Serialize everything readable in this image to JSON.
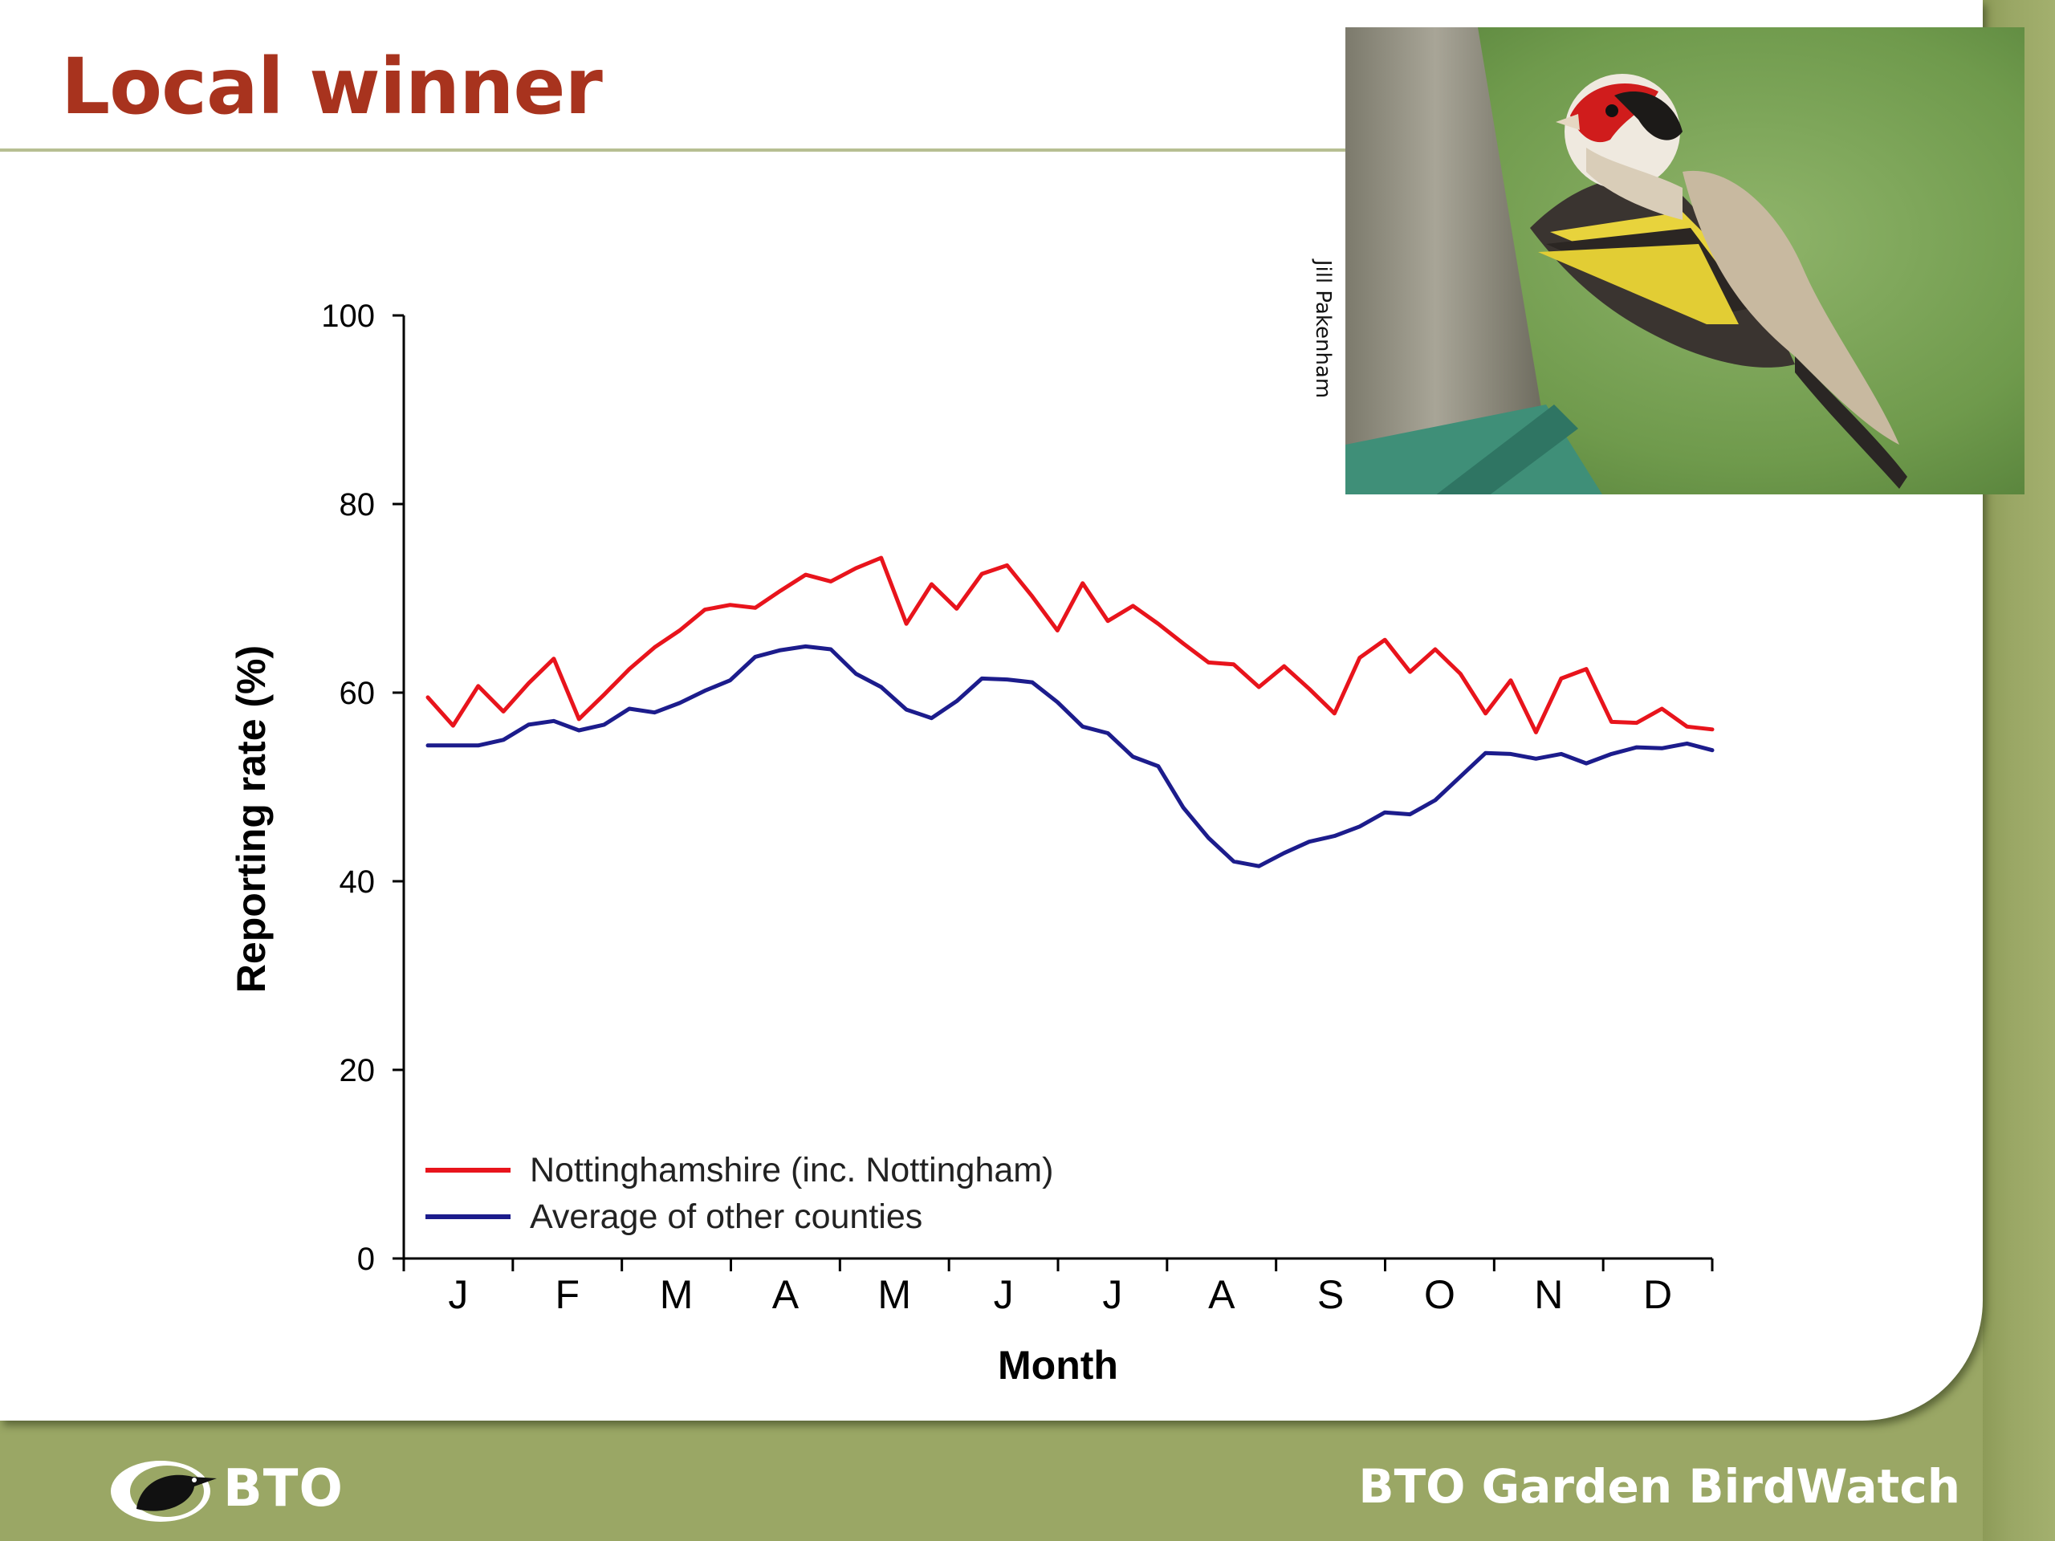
{
  "slide": {
    "title": "Local winner",
    "photo_credit": "Jill Pakenham",
    "footer_logo": "BTO",
    "footer_brand": "BTO Garden BirdWatch"
  },
  "colors": {
    "title": "#a8331e",
    "footer_band": "#9aa765",
    "series_nottinghamshire": "#e8141c",
    "series_other": "#1c1c8c"
  },
  "chart_data": {
    "type": "line",
    "title": "",
    "xlabel": "Month",
    "ylabel": "Reporting rate (%)",
    "ylim": [
      0,
      100
    ],
    "yticks": [
      0,
      20,
      40,
      60,
      80,
      100
    ],
    "month_labels": [
      "J",
      "F",
      "M",
      "A",
      "M",
      "J",
      "J",
      "A",
      "S",
      "O",
      "N",
      "D"
    ],
    "x_unit": "week of year",
    "x": [
      1,
      2,
      3,
      4,
      5,
      6,
      7,
      8,
      9,
      10,
      11,
      12,
      13,
      14,
      15,
      16,
      17,
      18,
      19,
      20,
      21,
      22,
      23,
      24,
      25,
      26,
      27,
      28,
      29,
      30,
      31,
      32,
      33,
      34,
      35,
      36,
      37,
      38,
      39,
      40,
      41,
      42,
      43,
      44,
      45,
      46,
      47,
      48,
      49,
      50,
      51,
      52
    ],
    "grid": false,
    "legend_position": "bottom-left",
    "series": [
      {
        "name": "Nottinghamshire (inc. Nottingham)",
        "color": "#e8141c",
        "values": [
          59.5,
          56.5,
          60.7,
          58.0,
          61.0,
          63.6,
          57.2,
          59.8,
          62.5,
          64.8,
          66.6,
          68.8,
          69.3,
          69.0,
          70.8,
          72.5,
          71.8,
          73.2,
          74.3,
          67.3,
          71.5,
          68.9,
          72.6,
          73.5,
          70.2,
          66.6,
          71.6,
          67.6,
          69.2,
          67.3,
          65.2,
          63.2,
          63.0,
          60.6,
          62.8,
          60.4,
          57.8,
          63.7,
          65.6,
          62.2,
          64.6,
          62.0,
          57.8,
          61.3,
          55.8,
          61.5,
          62.5,
          56.9,
          56.8,
          58.3,
          56.4,
          56.1
        ]
      },
      {
        "name": "Average of other counties",
        "color": "#1c1c8c",
        "values": [
          54.4,
          54.4,
          54.4,
          55.0,
          56.6,
          57.0,
          56.0,
          56.6,
          58.3,
          57.9,
          58.9,
          60.2,
          61.3,
          63.8,
          64.5,
          64.9,
          64.6,
          62.0,
          60.6,
          58.2,
          57.3,
          59.1,
          61.5,
          61.4,
          61.1,
          59.0,
          56.4,
          55.7,
          53.2,
          52.2,
          47.8,
          44.6,
          42.1,
          41.6,
          43.0,
          44.2,
          44.8,
          45.8,
          47.3,
          47.1,
          48.6,
          51.1,
          53.6,
          53.5,
          53.0,
          53.5,
          52.5,
          53.5,
          54.2,
          54.1,
          54.6,
          53.9
        ]
      }
    ]
  }
}
